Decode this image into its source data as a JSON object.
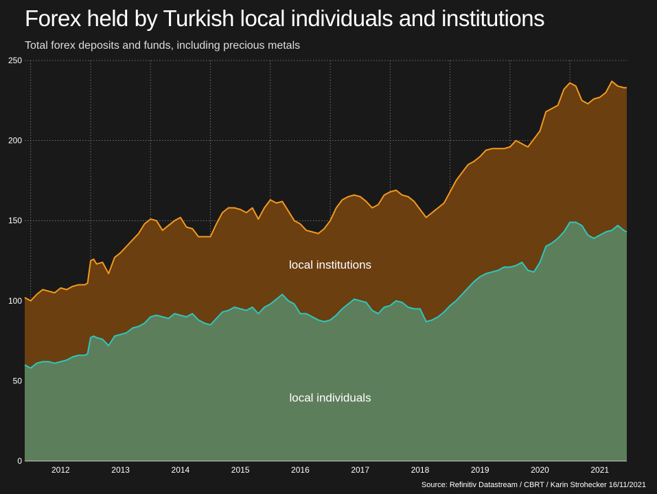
{
  "header": {
    "title": "Forex held by Turkish local individuals and institutions",
    "subtitle": "Total forex deposits and funds, including precious metals"
  },
  "footer": {
    "source": "Source: Refinitiv Datastream / CBRT / Karin Strohecker 16/11/2021"
  },
  "colors": {
    "background": "#191919",
    "individuals_fill": "#5c7e5a",
    "individuals_line": "#2ec7c0",
    "institutions_fill": "#6b3f10",
    "institutions_line": "#f39a1f",
    "grid": "#8a8a8a"
  },
  "chart_data": {
    "type": "area",
    "stacked": false,
    "title": "Forex held by Turkish local individuals and institutions",
    "subtitle": "Total forex deposits and funds, including precious metals",
    "ylim": [
      0,
      250
    ],
    "yticks": [
      0,
      50,
      100,
      150,
      200,
      250
    ],
    "xlim": [
      2011.4,
      2021.45
    ],
    "xticks": [
      {
        "label": "2012",
        "value": 2012.0
      },
      {
        "label": "2013",
        "value": 2013.0
      },
      {
        "label": "2014",
        "value": 2014.0
      },
      {
        "label": "2015",
        "value": 2015.0
      },
      {
        "label": "2016",
        "value": 2016.0
      },
      {
        "label": "2017",
        "value": 2017.0
      },
      {
        "label": "2018",
        "value": 2018.0
      },
      {
        "label": "2019",
        "value": 2019.0
      },
      {
        "label": "2020",
        "value": 2020.0
      },
      {
        "label": "2021",
        "value": 2021.0
      }
    ],
    "grid": {
      "horizontal": true,
      "vertical": true,
      "style": "dotted"
    },
    "area_labels": [
      {
        "text": "local institutions",
        "series": "local institutions",
        "x": 2016.5,
        "y": 120
      },
      {
        "text": "local individuals",
        "series": "local individuals",
        "x": 2016.5,
        "y": 37
      }
    ],
    "series": [
      {
        "name": "local individuals",
        "x": [
          2011.4,
          2011.5,
          2011.6,
          2011.7,
          2011.8,
          2011.9,
          2012.0,
          2012.1,
          2012.2,
          2012.3,
          2012.4,
          2012.45,
          2012.5,
          2012.55,
          2012.6,
          2012.7,
          2012.8,
          2012.9,
          2013.0,
          2013.1,
          2013.2,
          2013.3,
          2013.4,
          2013.5,
          2013.6,
          2013.7,
          2013.8,
          2013.9,
          2014.0,
          2014.1,
          2014.2,
          2014.3,
          2014.4,
          2014.5,
          2014.6,
          2014.7,
          2014.8,
          2014.9,
          2015.0,
          2015.1,
          2015.2,
          2015.3,
          2015.4,
          2015.5,
          2015.6,
          2015.7,
          2015.8,
          2015.9,
          2016.0,
          2016.1,
          2016.2,
          2016.3,
          2016.4,
          2016.5,
          2016.6,
          2016.7,
          2016.8,
          2016.9,
          2017.0,
          2017.1,
          2017.2,
          2017.3,
          2017.4,
          2017.5,
          2017.6,
          2017.7,
          2017.8,
          2017.9,
          2018.0,
          2018.1,
          2018.2,
          2018.3,
          2018.4,
          2018.5,
          2018.6,
          2018.7,
          2018.8,
          2018.9,
          2019.0,
          2019.1,
          2019.2,
          2019.3,
          2019.4,
          2019.5,
          2019.6,
          2019.7,
          2019.8,
          2019.9,
          2020.0,
          2020.1,
          2020.2,
          2020.3,
          2020.4,
          2020.5,
          2020.6,
          2020.7,
          2020.8,
          2020.9,
          2021.0,
          2021.1,
          2021.2,
          2021.3,
          2021.4,
          2021.45
        ],
        "y": [
          60,
          58,
          61,
          62,
          62,
          61,
          62,
          63,
          65,
          66,
          66,
          67,
          77,
          78,
          77,
          76,
          72,
          78,
          79,
          80,
          83,
          84,
          86,
          90,
          91,
          90,
          89,
          92,
          91,
          90,
          92,
          88,
          86,
          85,
          89,
          93,
          94,
          96,
          95,
          94,
          96,
          92,
          96,
          98,
          101,
          104,
          100,
          98,
          92,
          92,
          90,
          88,
          87,
          88,
          91,
          95,
          98,
          101,
          100,
          99,
          94,
          92,
          96,
          97,
          100,
          99,
          96,
          95,
          95,
          87,
          88,
          90,
          93,
          97,
          100,
          104,
          108,
          112,
          115,
          117,
          118,
          119,
          121,
          121,
          122,
          124,
          119,
          118,
          124,
          134,
          136,
          139,
          143,
          149,
          149,
          147,
          141,
          139,
          141,
          143,
          144,
          147,
          144,
          143
        ]
      },
      {
        "name": "local institutions",
        "x": [
          2011.4,
          2011.5,
          2011.6,
          2011.7,
          2011.8,
          2011.9,
          2012.0,
          2012.1,
          2012.2,
          2012.3,
          2012.4,
          2012.45,
          2012.5,
          2012.55,
          2012.6,
          2012.7,
          2012.8,
          2012.9,
          2013.0,
          2013.1,
          2013.2,
          2013.3,
          2013.4,
          2013.5,
          2013.6,
          2013.7,
          2013.8,
          2013.9,
          2014.0,
          2014.1,
          2014.2,
          2014.3,
          2014.4,
          2014.5,
          2014.6,
          2014.7,
          2014.8,
          2014.9,
          2015.0,
          2015.1,
          2015.2,
          2015.3,
          2015.4,
          2015.5,
          2015.6,
          2015.7,
          2015.8,
          2015.9,
          2016.0,
          2016.1,
          2016.2,
          2016.3,
          2016.4,
          2016.5,
          2016.6,
          2016.7,
          2016.8,
          2016.9,
          2017.0,
          2017.1,
          2017.2,
          2017.3,
          2017.4,
          2017.5,
          2017.6,
          2017.7,
          2017.8,
          2017.9,
          2018.0,
          2018.1,
          2018.2,
          2018.3,
          2018.4,
          2018.5,
          2018.6,
          2018.7,
          2018.8,
          2018.9,
          2019.0,
          2019.1,
          2019.2,
          2019.3,
          2019.4,
          2019.5,
          2019.6,
          2019.7,
          2019.8,
          2019.9,
          2020.0,
          2020.1,
          2020.2,
          2020.3,
          2020.4,
          2020.5,
          2020.6,
          2020.7,
          2020.8,
          2020.9,
          2021.0,
          2021.1,
          2021.2,
          2021.3,
          2021.4,
          2021.45
        ],
        "y": [
          102,
          100,
          104,
          107,
          106,
          105,
          108,
          107,
          109,
          110,
          110,
          111,
          125,
          126,
          123,
          124,
          117,
          127,
          130,
          134,
          138,
          142,
          148,
          151,
          150,
          144,
          147,
          150,
          152,
          146,
          145,
          140,
          140,
          140,
          148,
          155,
          158,
          158,
          157,
          155,
          158,
          151,
          158,
          163,
          161,
          162,
          156,
          150,
          148,
          144,
          143,
          142,
          145,
          150,
          158,
          163,
          165,
          166,
          165,
          162,
          158,
          160,
          166,
          168,
          169,
          166,
          165,
          162,
          157,
          152,
          155,
          158,
          161,
          168,
          175,
          180,
          185,
          187,
          190,
          194,
          195,
          195,
          195,
          196,
          200,
          198,
          196,
          201,
          206,
          218,
          220,
          222,
          232,
          236,
          234,
          225,
          223,
          226,
          227,
          230,
          237,
          234,
          233,
          233
        ]
      }
    ]
  }
}
